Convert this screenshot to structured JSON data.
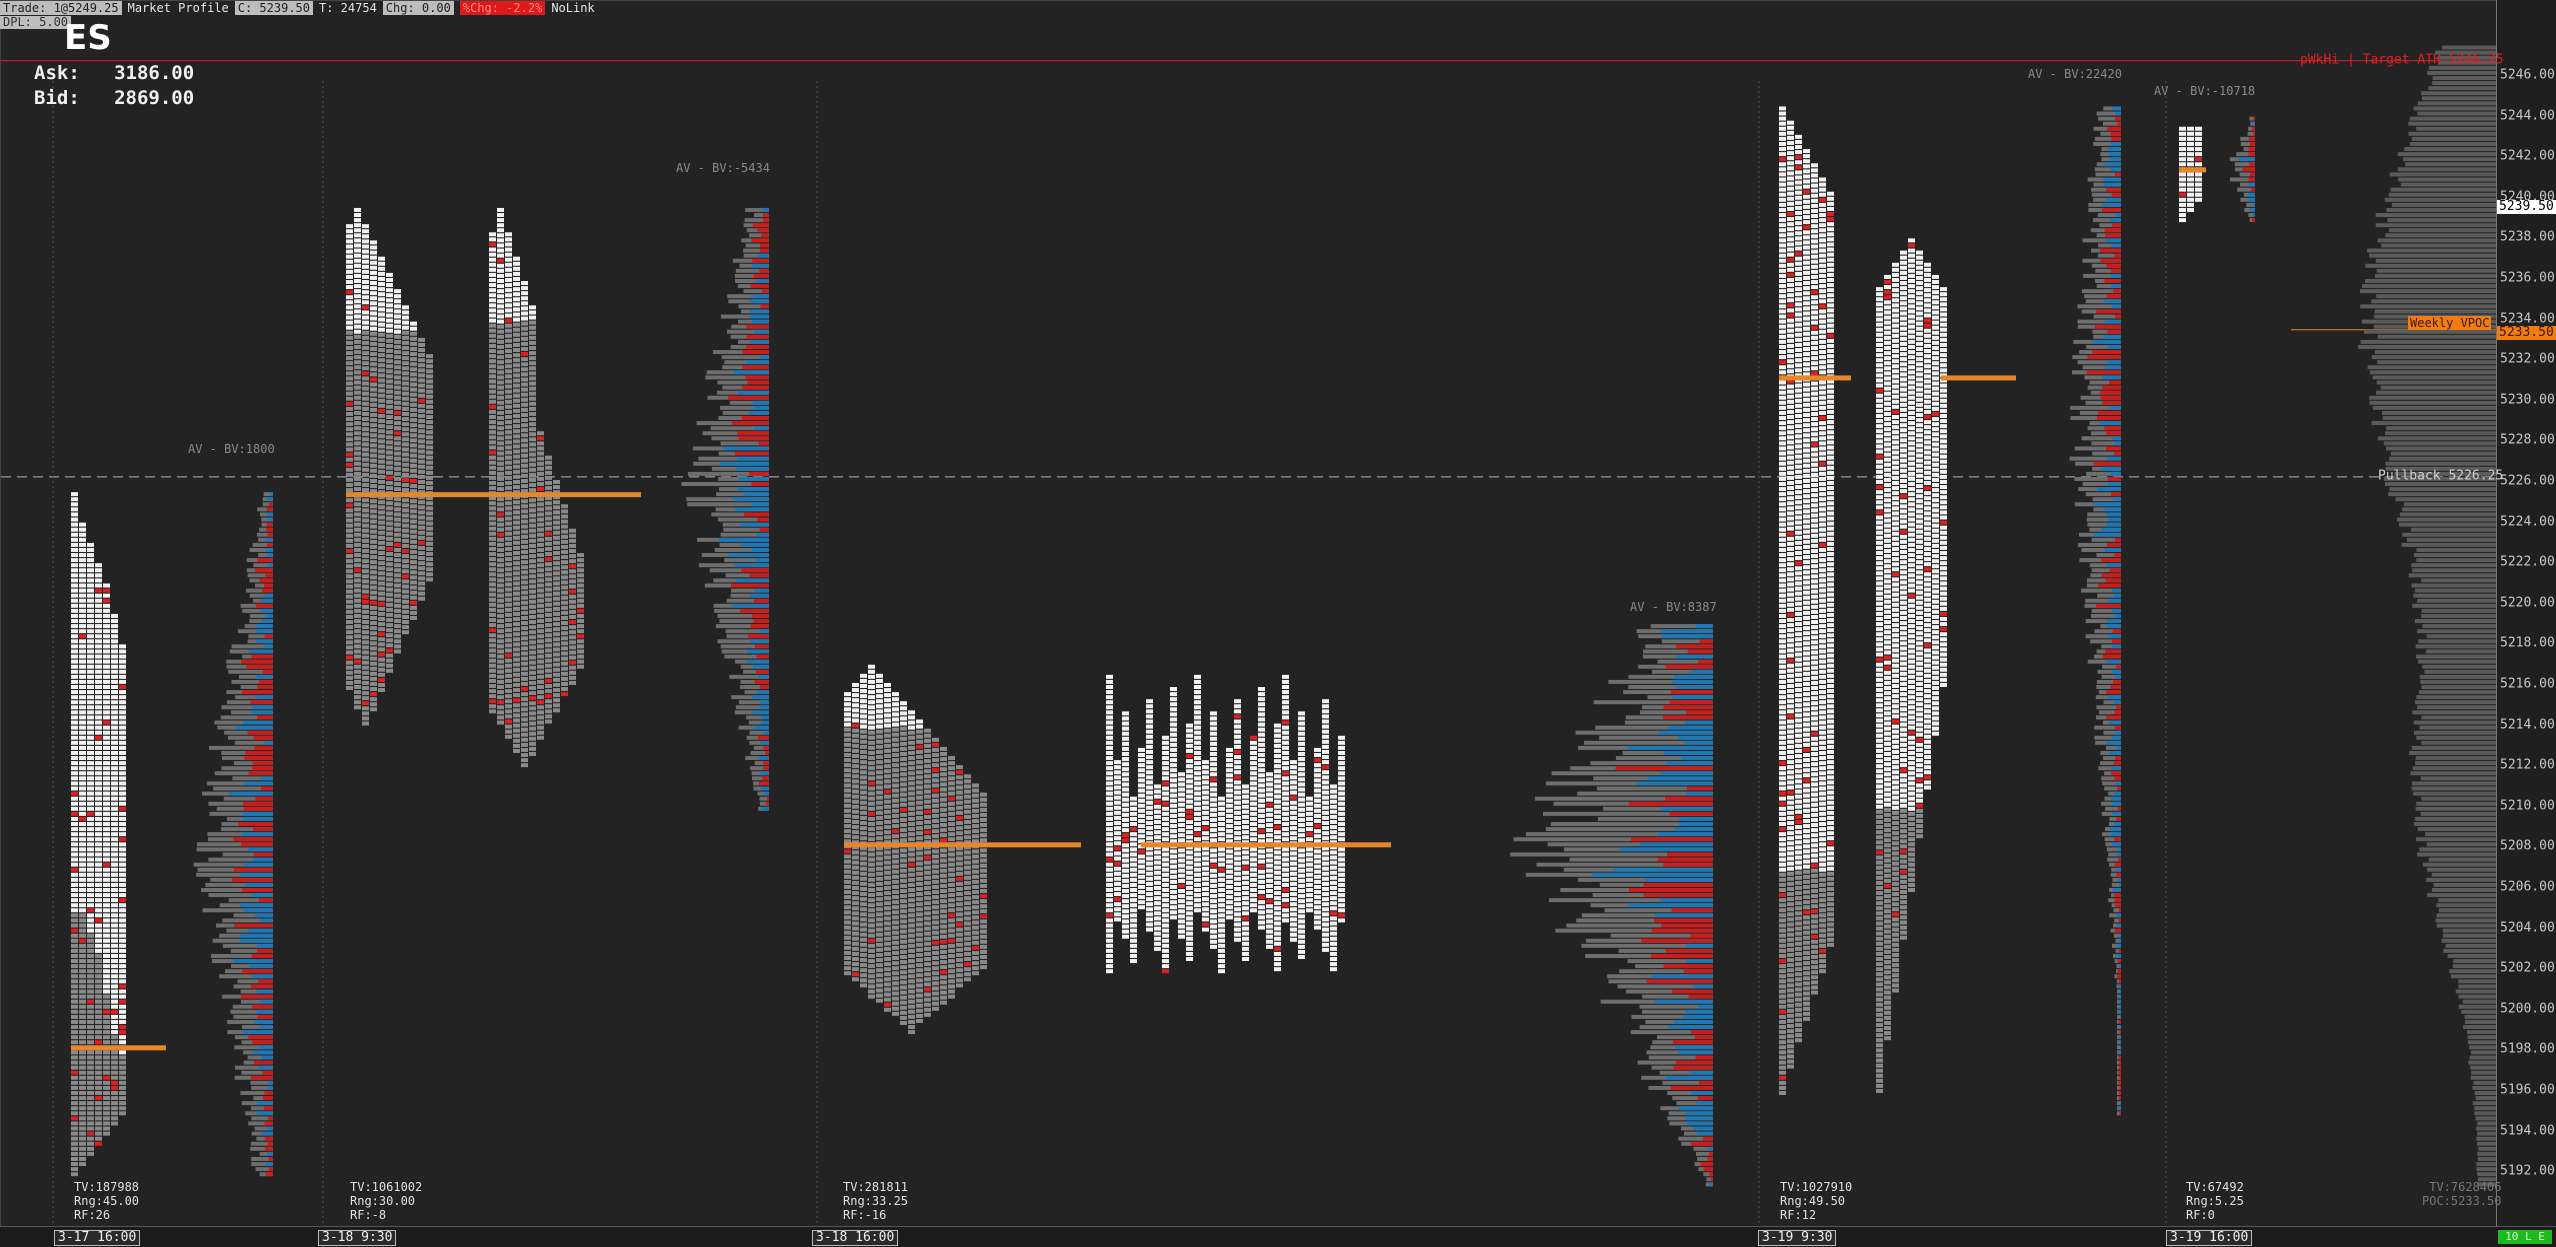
{
  "header": {
    "trade": "Trade: 1@5249.25",
    "study": "Market Profile",
    "close": "C: 5239.50",
    "ticks": "T: 24754",
    "change": "Chg: 0.00",
    "pct_change": "%Chg: -2.2%",
    "link": "NoLink",
    "dpl": "DPL: 5.00"
  },
  "symbol": "ES",
  "quote": {
    "ask_label": "Ask:",
    "ask": "3186.00",
    "bid_label": "Bid:",
    "bid": "2869.00"
  },
  "price_axis": {
    "min": 5191,
    "max": 5248,
    "ticks": [
      "5246.00",
      "5244.00",
      "5242.00",
      "5240.00",
      "5238.00",
      "5236.00",
      "5234.00",
      "5232.00",
      "5230.00",
      "5228.00",
      "5226.00",
      "5224.00",
      "5222.00",
      "5220.00",
      "5218.00",
      "5216.00",
      "5214.00",
      "5212.00",
      "5210.00",
      "5208.00",
      "5206.00",
      "5204.00",
      "5202.00",
      "5200.00",
      "5198.00",
      "5196.00",
      "5194.00",
      "5192.00"
    ],
    "current_price": "5239.50"
  },
  "annotations": {
    "pwkhi": {
      "label": "pWkHi | Target ATH",
      "price": "5246.75",
      "color": "#e02020"
    },
    "pullback": {
      "label": "Pullback",
      "price": "5226.25",
      "color": "#cfcfcf"
    },
    "weekly_vpoc": {
      "label": "Weekly VPOC",
      "price": "5233.50",
      "color": "#f07c12"
    }
  },
  "profiles": [
    {
      "av_label": "AV - BV:1800",
      "stats": {
        "tv": "TV:187988",
        "rng": "Rng:45.00",
        "rf": "RF:26"
      }
    },
    {
      "av_label": "AV - BV:-5434",
      "stats": {
        "tv": "TV:1061002",
        "rng": "Rng:30.00",
        "rf": "RF:-8"
      }
    },
    {
      "av_label": "AV - BV:8387",
      "stats": {
        "tv": "TV:281811",
        "rng": "Rng:33.25",
        "rf": "RF:-16"
      }
    },
    {
      "av_label": "AV - BV:22420",
      "stats": {
        "tv": "TV:1027910",
        "rng": "Rng:49.50",
        "rf": "RF:12"
      }
    },
    {
      "av_label": "AV - BV:-10718",
      "stats": {
        "tv": "TV:67492",
        "rng": "Rng:5.25",
        "rf": "RF:0"
      }
    }
  ],
  "composite": {
    "tv": "TV:7628406",
    "poc": "POC:5233.50"
  },
  "time_axis": [
    "3-17  16:00",
    "3-18  9:30",
    "3-18  16:00",
    "3-19  9:30",
    "3-19  16:00"
  ],
  "status": "10 L E",
  "colors": {
    "background": "#232323",
    "tpo_block": "#f2f2f2",
    "tpo_gray": "#8a8a8a",
    "volume_gray": "#6e6e6e",
    "volume_blue": "#1f77b4",
    "volume_red": "#c81e1e",
    "poc_orange": "#e8862a",
    "red_marker": "#e02020"
  }
}
